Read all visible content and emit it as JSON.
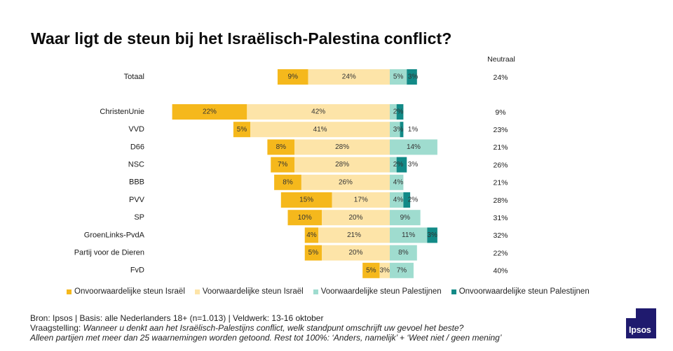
{
  "chart_data": {
    "type": "bar",
    "stacking": "diverging",
    "title": "Waar ligt de steun bij het Israëlisch-Palestina conflict?",
    "categories": [
      "Totaal",
      "ChristenUnie",
      "VVD",
      "D66",
      "NSC",
      "BBB",
      "PVV",
      "SP",
      "GroenLinks-PvdA",
      "Partij voor de Dieren",
      "FvD"
    ],
    "series": [
      {
        "name": "Onvoorwaardelijke steun Israël",
        "color": "#f5b81c",
        "values": [
          9,
          22,
          5,
          8,
          7,
          8,
          15,
          10,
          4,
          5,
          5
        ]
      },
      {
        "name": "Voorwaardelijke steun Israël",
        "color": "#fde4a8",
        "values": [
          24,
          42,
          41,
          28,
          28,
          26,
          17,
          20,
          21,
          20,
          3
        ]
      },
      {
        "name": "Voorwaardelijke steun Palestijnen",
        "color": "#9fdccf",
        "values": [
          5,
          2,
          3,
          14,
          2,
          4,
          4,
          9,
          11,
          8,
          7
        ]
      },
      {
        "name": "Onvoorwaardelijke steun Palestijnen",
        "color": "#128a87",
        "values": [
          3,
          2,
          1,
          0,
          3,
          0,
          2,
          0,
          3,
          0,
          0
        ]
      }
    ],
    "labels": [
      [
        "9%",
        "24%",
        "5%",
        "3%"
      ],
      [
        "22%",
        "42%",
        "2%",
        ""
      ],
      [
        "5%",
        "41%",
        "3%",
        "1%"
      ],
      [
        "8%",
        "28%",
        "14%",
        ""
      ],
      [
        "7%",
        "28%",
        "2%",
        "3%"
      ],
      [
        "8%",
        "26%",
        "4%",
        ""
      ],
      [
        "15%",
        "17%",
        "4%",
        "2%"
      ],
      [
        "10%",
        "20%",
        "9%",
        ""
      ],
      [
        "4%",
        "21%",
        "11%",
        "3%"
      ],
      [
        "5%",
        "20%",
        "8%",
        ""
      ],
      [
        "5%",
        "3%",
        "7%",
        ""
      ]
    ],
    "neutral_header": "Neutraal",
    "neutral": [
      "24%",
      "9%",
      "23%",
      "21%",
      "26%",
      "21%",
      "28%",
      "31%",
      "32%",
      "22%",
      "40%"
    ]
  },
  "footer": {
    "source": "Bron: Ipsos | Basis: alle Nederlanders  18+ (n=1.013) | Veldwerk: 13-16 oktober",
    "question_label": "Vraagstelling:",
    "question": "Wanneer u denkt aan het Israëlisch-Palestijns conflict, welk standpunt omschrijft uw gevoel het beste?",
    "note": "Alleen partijen  met meer dan 25 waarnemingen  worden  getoond. Rest tot 100%: ‘Anders, namelijk’ + ‘Weet niet / geen mening’"
  },
  "logo": {
    "text": "Ipsos",
    "color": "#1f1a6e"
  }
}
